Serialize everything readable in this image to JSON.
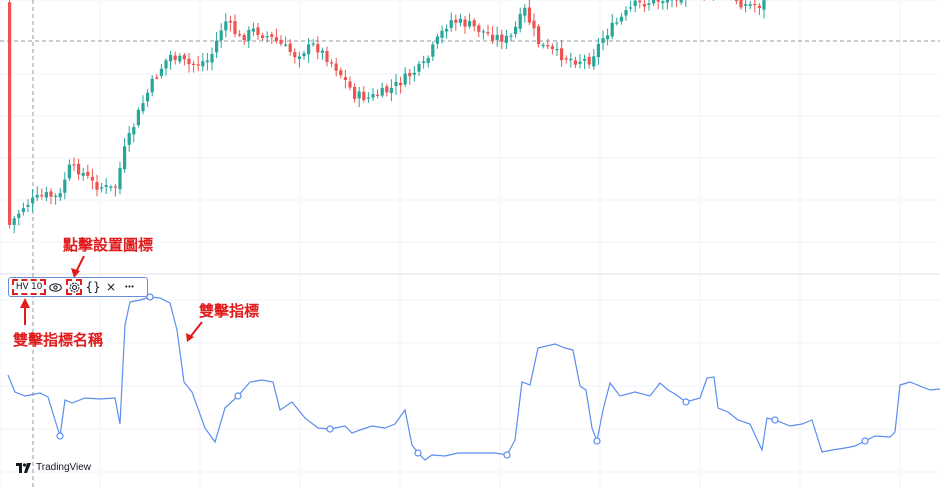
{
  "indicator": {
    "name_label": "HV 10",
    "colors": {
      "up": "#26a69a",
      "down": "#ef5350",
      "line": "#5b8def",
      "annotation": "#e11b1b"
    },
    "toolbar_icons": [
      "eye-icon",
      "settings-icon",
      "source-code-icon",
      "close-icon",
      "more-icon"
    ],
    "glyphs": {
      "braces": "{}",
      "close": "×",
      "more": "•••"
    }
  },
  "annotations": {
    "click_settings": "點擊設置圖標",
    "double_click_indicator": "雙擊指標",
    "double_click_name": "雙擊指標名稱"
  },
  "branding": {
    "logo_text": "TradingView"
  }
}
